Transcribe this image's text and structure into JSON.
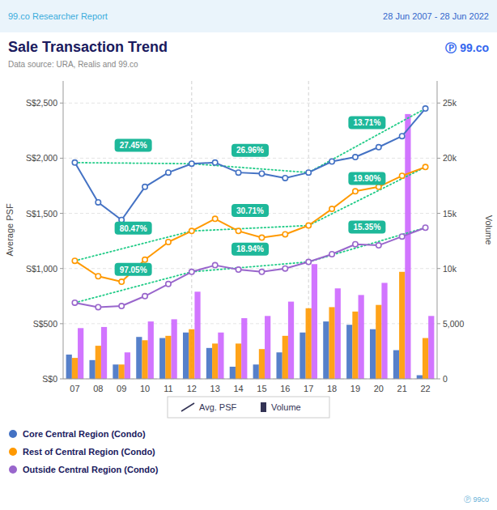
{
  "chart_data": {
    "type": "bar",
    "header_left": "99.co Researcher Report",
    "header_right": "28 Jun 2007 - 28 Jun 2022",
    "logo": "Ⓟ 99.co",
    "watermark": "Ⓟ 99co",
    "title": "Sale Transaction Trend",
    "subtitle": "Data source: URA, Realis and 99.co",
    "y_label": "Average PSF",
    "y2_label": "Volume",
    "categories": [
      "07",
      "08",
      "09",
      "10",
      "11",
      "12",
      "13",
      "14",
      "15",
      "16",
      "17",
      "18",
      "19",
      "20",
      "21",
      "22"
    ],
    "series": [
      {
        "name": "Core Central Region (Condo)",
        "type": "line",
        "marker": "circle",
        "color": "#4472C4",
        "values": [
          1960,
          1600,
          1440,
          1740,
          1870,
          1950,
          1960,
          1870,
          1860,
          1820,
          1870,
          1970,
          2010,
          2100,
          2200,
          2450
        ]
      },
      {
        "name": "Rest of Central Region (Condo)",
        "type": "line",
        "marker": "circle",
        "color": "#FF9900",
        "values": [
          1070,
          930,
          880,
          1080,
          1240,
          1340,
          1450,
          1340,
          1280,
          1310,
          1390,
          1540,
          1700,
          1740,
          1840,
          1920
        ]
      },
      {
        "name": "Outside Central Region (Condo)",
        "type": "line",
        "marker": "circle",
        "color": "#9966CC",
        "values": [
          690,
          650,
          660,
          750,
          860,
          970,
          1030,
          990,
          970,
          1000,
          1060,
          1130,
          1220,
          1210,
          1290,
          1370
        ]
      },
      {
        "type": "bar",
        "axis": "y2",
        "color": "#4472C4",
        "values": [
          2200,
          1700,
          1300,
          3800,
          3700,
          4200,
          2800,
          1100,
          1300,
          2400,
          4200,
          5200,
          4900,
          4500,
          2600,
          330
        ]
      },
      {
        "type": "bar",
        "axis": "y2",
        "color": "#FF9900",
        "values": [
          1900,
          3000,
          1300,
          3500,
          3900,
          4500,
          3200,
          3200,
          2700,
          3900,
          6400,
          6500,
          6100,
          6700,
          9700,
          3700
        ]
      },
      {
        "type": "bar",
        "axis": "y2",
        "color": "#CC66FF",
        "values": [
          4600,
          4700,
          2400,
          5200,
          5400,
          7900,
          4200,
          5500,
          5700,
          7000,
          10400,
          8200,
          7600,
          8700,
          24000,
          5700
        ]
      }
    ],
    "ylim": [
      0,
      2700
    ],
    "yticks": [
      {
        "value": 0,
        "label": "S$0"
      },
      {
        "value": 500,
        "label": "S$500"
      },
      {
        "value": 1000,
        "label": "S$1,000"
      },
      {
        "value": 1500,
        "label": "S$1,500"
      },
      {
        "value": 2000,
        "label": "S$2,000"
      },
      {
        "value": 2500,
        "label": "S$2,500"
      }
    ],
    "y2lim": [
      0,
      27000
    ],
    "y2ticks": [
      0,
      {
        "value": 5000,
        "label": "5,000"
      },
      {
        "value": 10000,
        "label": "10k"
      },
      {
        "value": 15000,
        "label": "15k"
      },
      {
        "value": 20000,
        "label": "20k"
      },
      {
        "value": 25000,
        "label": "25k"
      }
    ],
    "grid": true,
    "legend": "bottom",
    "trend_color": "#22CC88",
    "annotation_color": "#1EB89A",
    "annotations": [
      "27.45%",
      "26.96%",
      "13.71%",
      "80.47%",
      "30.71%",
      "19.90%",
      "97.05%",
      "18.94%",
      "15.35%"
    ],
    "type_legend": [
      "Avg. PSF",
      "Volume"
    ]
  }
}
